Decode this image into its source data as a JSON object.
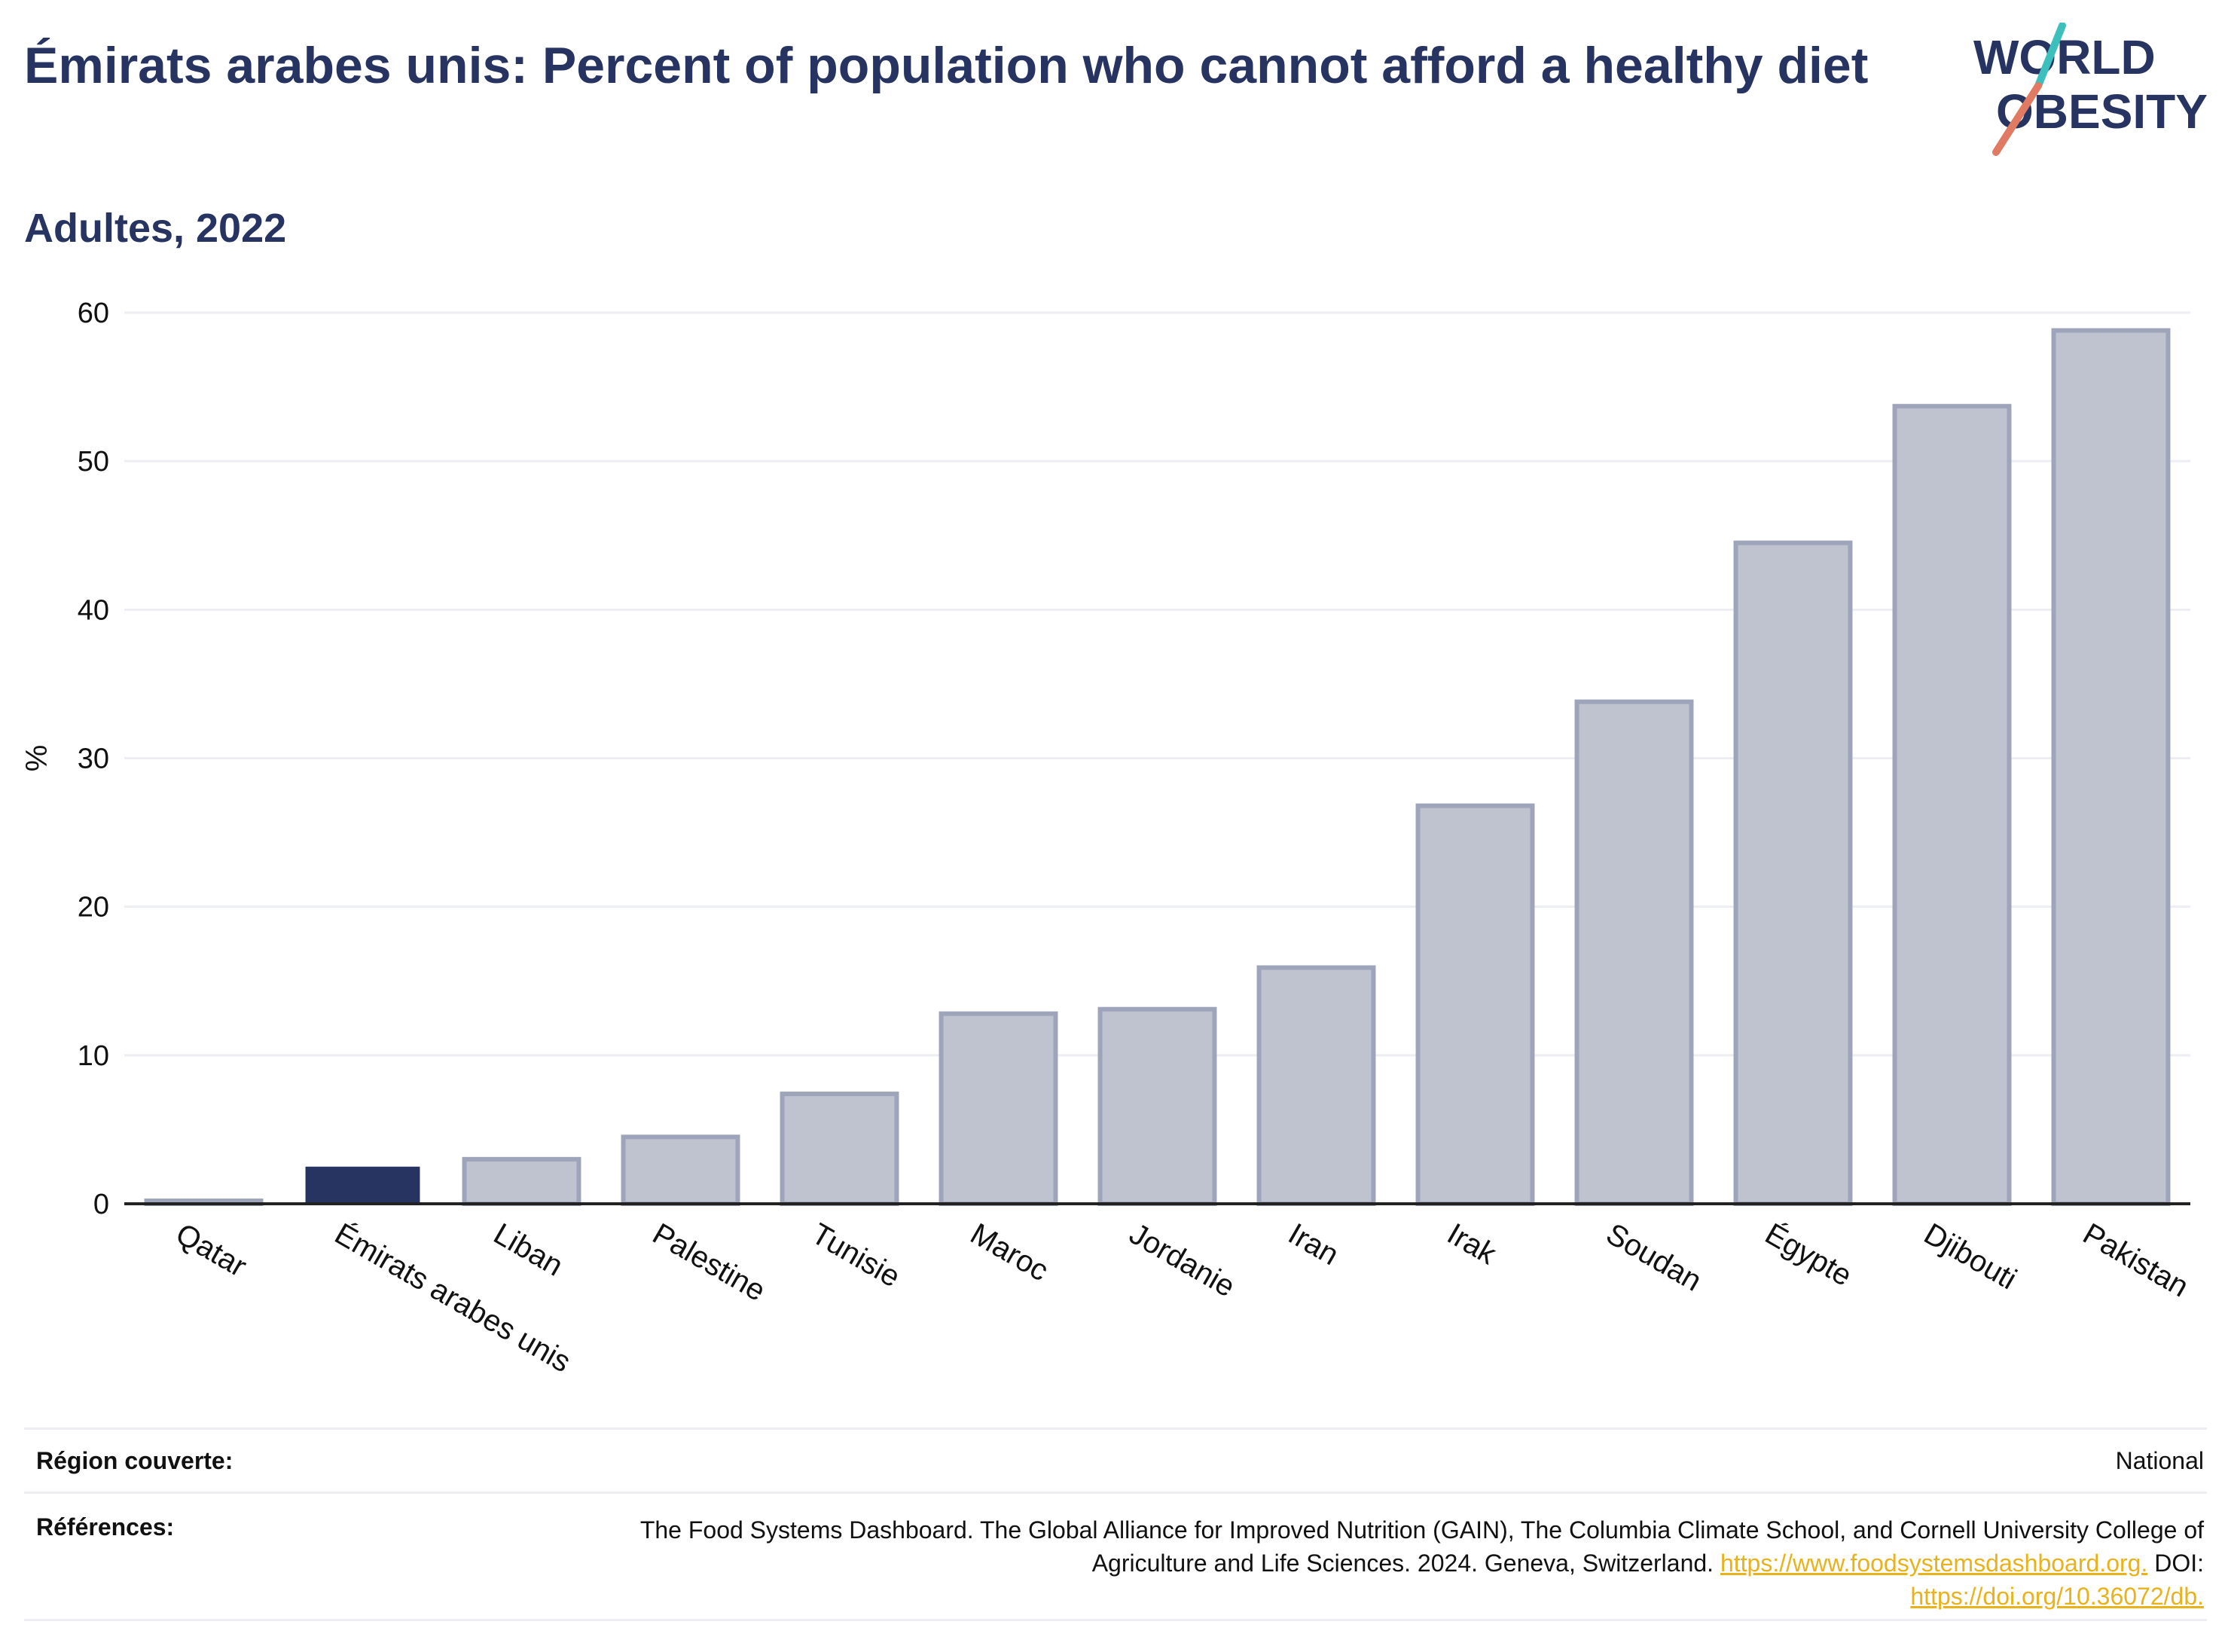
{
  "header": {
    "title": "Émirats arabes unis: Percent of population who cannot afford a healthy diet",
    "subtitle": "Adultes, 2022"
  },
  "logo": {
    "line1": "WORLD",
    "line2": "OBESITY"
  },
  "chart_data": {
    "type": "bar",
    "title": "Émirats arabes unis: Percent of population who cannot afford a healthy diet",
    "subtitle": "Adultes, 2022",
    "ylabel": "%",
    "xlabel": "",
    "ylim": [
      0,
      60
    ],
    "yticks": [
      0,
      10,
      20,
      30,
      40,
      50,
      60
    ],
    "grid": true,
    "highlight": "Émirats arabes unis",
    "categories": [
      "Qatar",
      "Émirats arabes unis",
      "Liban",
      "Palestine",
      "Tunisie",
      "Maroc",
      "Jordanie",
      "Iran",
      "Irak",
      "Soudan",
      "Égypte",
      "Djibouti",
      "Pakistan"
    ],
    "values": [
      0.2,
      2.5,
      3.0,
      4.5,
      7.4,
      12.8,
      13.1,
      15.9,
      26.8,
      33.8,
      44.5,
      53.7,
      58.8
    ],
    "colors": {
      "highlight": "#273461",
      "default": "#bfc3d0",
      "default_edge": "#9ea4ba",
      "axis": "#222222",
      "grid": "#eceef2"
    }
  },
  "footer": {
    "region_label": "Région couverte:",
    "region_value": "National",
    "refs_label": "Références:",
    "refs_text": "The Food Systems Dashboard. The Global Alliance for Improved Nutrition (GAIN), The Columbia Climate School, and Cornell University College of Agriculture and Life Sciences. 2024. Geneva, Switzerland.",
    "refs_link1": "https://www.foodsystemsdashboard.org.",
    "refs_doi_label": "DOI:",
    "refs_link2": "https://doi.org/10.36072/db."
  }
}
